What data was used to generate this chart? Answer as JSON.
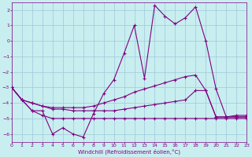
{
  "xlabel": "Windchill (Refroidissement éolien,°C)",
  "background_color": "#c8eef0",
  "grid_color": "#a0c8d8",
  "line_color": "#800080",
  "xlim": [
    0,
    23
  ],
  "ylim": [
    -6.5,
    2.5
  ],
  "xticks": [
    0,
    1,
    2,
    3,
    4,
    5,
    6,
    7,
    8,
    9,
    10,
    11,
    12,
    13,
    14,
    15,
    16,
    17,
    18,
    19,
    20,
    21,
    22,
    23
  ],
  "yticks": [
    -6,
    -5,
    -4,
    -3,
    -2,
    -1,
    0,
    1,
    2
  ],
  "series1_x": [
    0,
    1,
    2,
    3,
    4,
    5,
    6,
    7,
    8,
    9,
    10,
    11,
    12,
    13,
    14,
    15,
    16,
    17,
    18,
    19,
    20,
    21,
    22,
    23
  ],
  "series1_y": [
    -3.0,
    -3.8,
    -4.5,
    -4.5,
    -6.0,
    -5.6,
    -6.0,
    -6.2,
    -4.7,
    -3.4,
    -2.5,
    -0.8,
    1.0,
    -2.4,
    2.3,
    1.6,
    1.1,
    1.5,
    2.2,
    0.0,
    -3.1,
    -4.9,
    -4.8,
    -4.8
  ],
  "series2_x": [
    0,
    1,
    2,
    3,
    4,
    5,
    6,
    7,
    8,
    9,
    10,
    11,
    12,
    13,
    14,
    15,
    16,
    17,
    18,
    19,
    20,
    21,
    22,
    23
  ],
  "series2_y": [
    -3.0,
    -3.8,
    -4.0,
    -4.2,
    -4.3,
    -4.3,
    -4.3,
    -4.3,
    -4.2,
    -4.0,
    -3.8,
    -3.6,
    -3.3,
    -3.1,
    -2.9,
    -2.7,
    -2.5,
    -2.3,
    -2.2,
    -3.2,
    -4.9,
    -4.9,
    -4.9,
    -4.9
  ],
  "series3_x": [
    0,
    1,
    2,
    3,
    4,
    5,
    6,
    7,
    8,
    9,
    10,
    11,
    12,
    13,
    14,
    15,
    16,
    17,
    18,
    19,
    20,
    21,
    22,
    23
  ],
  "series3_y": [
    -3.0,
    -3.8,
    -4.0,
    -4.2,
    -4.4,
    -4.4,
    -4.5,
    -4.5,
    -4.5,
    -4.5,
    -4.5,
    -4.4,
    -4.3,
    -4.2,
    -4.1,
    -4.0,
    -3.9,
    -3.8,
    -3.2,
    -3.2,
    -4.9,
    -4.9,
    -4.9,
    -4.9
  ],
  "series4_x": [
    0,
    1,
    2,
    3,
    4,
    5,
    6,
    7,
    8,
    9,
    10,
    11,
    12,
    13,
    14,
    15,
    16,
    17,
    18,
    19,
    20,
    21,
    22,
    23
  ],
  "series4_y": [
    -3.0,
    -3.8,
    -4.5,
    -4.8,
    -5.0,
    -5.0,
    -5.0,
    -5.0,
    -5.0,
    -5.0,
    -5.0,
    -5.0,
    -5.0,
    -5.0,
    -5.0,
    -5.0,
    -5.0,
    -5.0,
    -5.0,
    -5.0,
    -5.0,
    -5.0,
    -5.0,
    -5.0
  ]
}
